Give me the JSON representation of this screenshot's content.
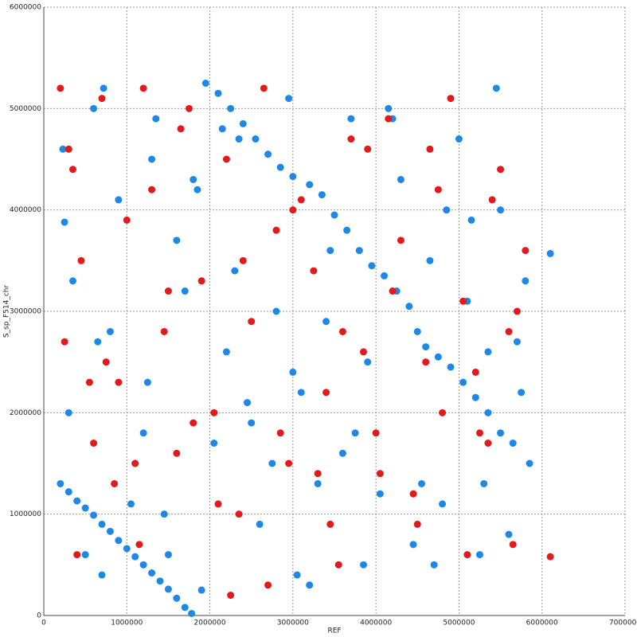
{
  "chart_data": {
    "type": "scatter",
    "x_label": "REF",
    "y_label": "S_sp_F514_chr",
    "xlim": [
      0,
      7000000
    ],
    "ylim": [
      0,
      6000000
    ],
    "xticks": [
      0,
      1000000,
      2000000,
      3000000,
      4000000,
      5000000,
      6000000,
      7000000
    ],
    "yticks": [
      0,
      1000000,
      2000000,
      3000000,
      4000000,
      5000000,
      6000000
    ],
    "grid": true,
    "series": [
      {
        "color": "#1e88e5",
        "x": [
          200000,
          300000,
          400000,
          500000,
          600000,
          700000,
          800000,
          900000,
          1000000,
          1100000,
          1200000,
          1300000,
          1400000,
          1500000,
          1600000,
          1700000,
          1780000,
          1950000,
          2100000,
          2250000,
          2400000,
          2550000,
          2700000,
          2850000,
          3000000,
          3200000,
          3350000,
          3500000,
          3650000,
          3800000,
          3950000,
          4100000,
          4250000,
          4400000,
          4500000,
          4600000,
          4750000,
          4900000,
          5050000,
          5200000,
          5350000,
          5500000,
          5650000,
          6100000,
          250000,
          350000,
          650000,
          720000,
          900000,
          1100000,
          1250000,
          1350000,
          1500000,
          1700000,
          1850000,
          2050000,
          2200000,
          2350000,
          2600000,
          2800000,
          2950000,
          3100000,
          3300000,
          3450000,
          3700000,
          3900000,
          4050000,
          4300000,
          4650000,
          4800000,
          5000000,
          5150000,
          5300000,
          5450000,
          5600000,
          5800000,
          300000,
          500000,
          800000,
          1050000,
          1300000,
          1600000,
          1900000,
          2150000,
          2450000,
          2750000,
          3050000,
          3400000,
          3750000,
          4150000,
          4450000,
          4850000,
          5250000,
          5700000,
          5850000,
          230000,
          700000,
          1200000,
          1800000,
          2500000,
          3200000,
          3600000,
          4200000,
          4700000,
          5100000,
          5500000,
          5750000,
          600000,
          1450000,
          2300000,
          3000000,
          3850000,
          4550000,
          5350000
        ],
        "y": [
          1300000,
          1220000,
          1130000,
          1060000,
          990000,
          900000,
          830000,
          740000,
          660000,
          580000,
          500000,
          420000,
          340000,
          260000,
          170000,
          80000,
          20000,
          5250000,
          5150000,
          5000000,
          4850000,
          4700000,
          4550000,
          4420000,
          4330000,
          4250000,
          4150000,
          3950000,
          3800000,
          3600000,
          3450000,
          3350000,
          3200000,
          3050000,
          2800000,
          2650000,
          2550000,
          2450000,
          2300000,
          2150000,
          2000000,
          1800000,
          1700000,
          3570000,
          3880000,
          3300000,
          2700000,
          5200000,
          4100000,
          1500000,
          2300000,
          4900000,
          600000,
          3200000,
          4200000,
          1700000,
          2600000,
          4700000,
          900000,
          3000000,
          5100000,
          2200000,
          1300000,
          3600000,
          4900000,
          2500000,
          1200000,
          4300000,
          3500000,
          1100000,
          4700000,
          3900000,
          1300000,
          5200000,
          800000,
          3300000,
          2000000,
          600000,
          2800000,
          1100000,
          4500000,
          3700000,
          250000,
          4800000,
          2100000,
          1500000,
          400000,
          2900000,
          1800000,
          5000000,
          700000,
          4000000,
          600000,
          2700000,
          1500000,
          4600000,
          400000,
          1800000,
          4300000,
          1900000,
          300000,
          1600000,
          4900000,
          500000,
          3100000,
          4000000,
          2200000,
          5000000,
          1000000,
          3400000,
          2400000,
          500000,
          1300000,
          2600000
        ]
      },
      {
        "color": "#e31a1c",
        "x": [
          200000,
          300000,
          450000,
          550000,
          700000,
          850000,
          1000000,
          1150000,
          1300000,
          1450000,
          1600000,
          1750000,
          1900000,
          2050000,
          2200000,
          2350000,
          2500000,
          2650000,
          2800000,
          2950000,
          3100000,
          3250000,
          3400000,
          3550000,
          3700000,
          3850000,
          4000000,
          4150000,
          4300000,
          4450000,
          4600000,
          4750000,
          4900000,
          5050000,
          5200000,
          5350000,
          5500000,
          5650000,
          5800000,
          250000,
          400000,
          600000,
          900000,
          1200000,
          1500000,
          1800000,
          2100000,
          2400000,
          2700000,
          3000000,
          3300000,
          3600000,
          3900000,
          4200000,
          4500000,
          4800000,
          5100000,
          5400000,
          5700000,
          350000,
          750000,
          1100000,
          1650000,
          2250000,
          2850000,
          3450000,
          4050000,
          4650000,
          5250000,
          5600000,
          6100000
        ],
        "y": [
          5200000,
          4600000,
          3500000,
          2300000,
          5100000,
          1300000,
          3900000,
          700000,
          4200000,
          2800000,
          1600000,
          5000000,
          3300000,
          2000000,
          4500000,
          1000000,
          2900000,
          5200000,
          3800000,
          1500000,
          4100000,
          3400000,
          2200000,
          500000,
          4700000,
          2600000,
          1800000,
          4900000,
          3700000,
          1200000,
          2500000,
          4200000,
          5100000,
          3100000,
          2400000,
          1700000,
          4400000,
          700000,
          3600000,
          2700000,
          600000,
          1700000,
          2300000,
          5200000,
          3200000,
          1900000,
          1100000,
          3500000,
          300000,
          4000000,
          1400000,
          2800000,
          4600000,
          3200000,
          900000,
          2000000,
          600000,
          4100000,
          3000000,
          4400000,
          2500000,
          1500000,
          4800000,
          200000,
          1800000,
          900000,
          1400000,
          4600000,
          1800000,
          2800000,
          580000
        ]
      }
    ]
  }
}
